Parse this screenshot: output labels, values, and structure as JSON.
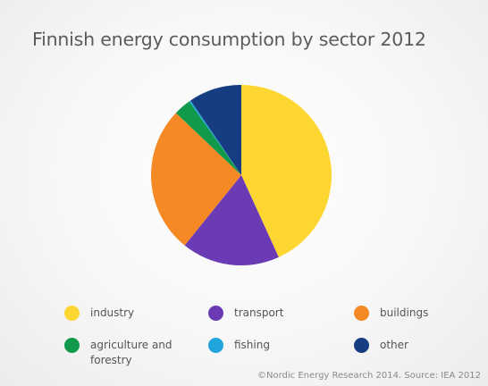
{
  "chart_data": {
    "type": "pie",
    "title": "Finnish energy consumption by sector 2012",
    "categories": [
      "industry",
      "transport",
      "buildings",
      "agriculture and forestry",
      "fishing",
      "other"
    ],
    "values": [
      43.2,
      17.6,
      26.3,
      3.1,
      0.3,
      9.5
    ],
    "colors": [
      "#fed631",
      "#6a3bb5",
      "#f48926",
      "#119a4c",
      "#1fa5dc",
      "#163d82"
    ],
    "legend_position": "bottom"
  },
  "credit": "©Nordic Energy Research 2014. Source: IEA 2012"
}
